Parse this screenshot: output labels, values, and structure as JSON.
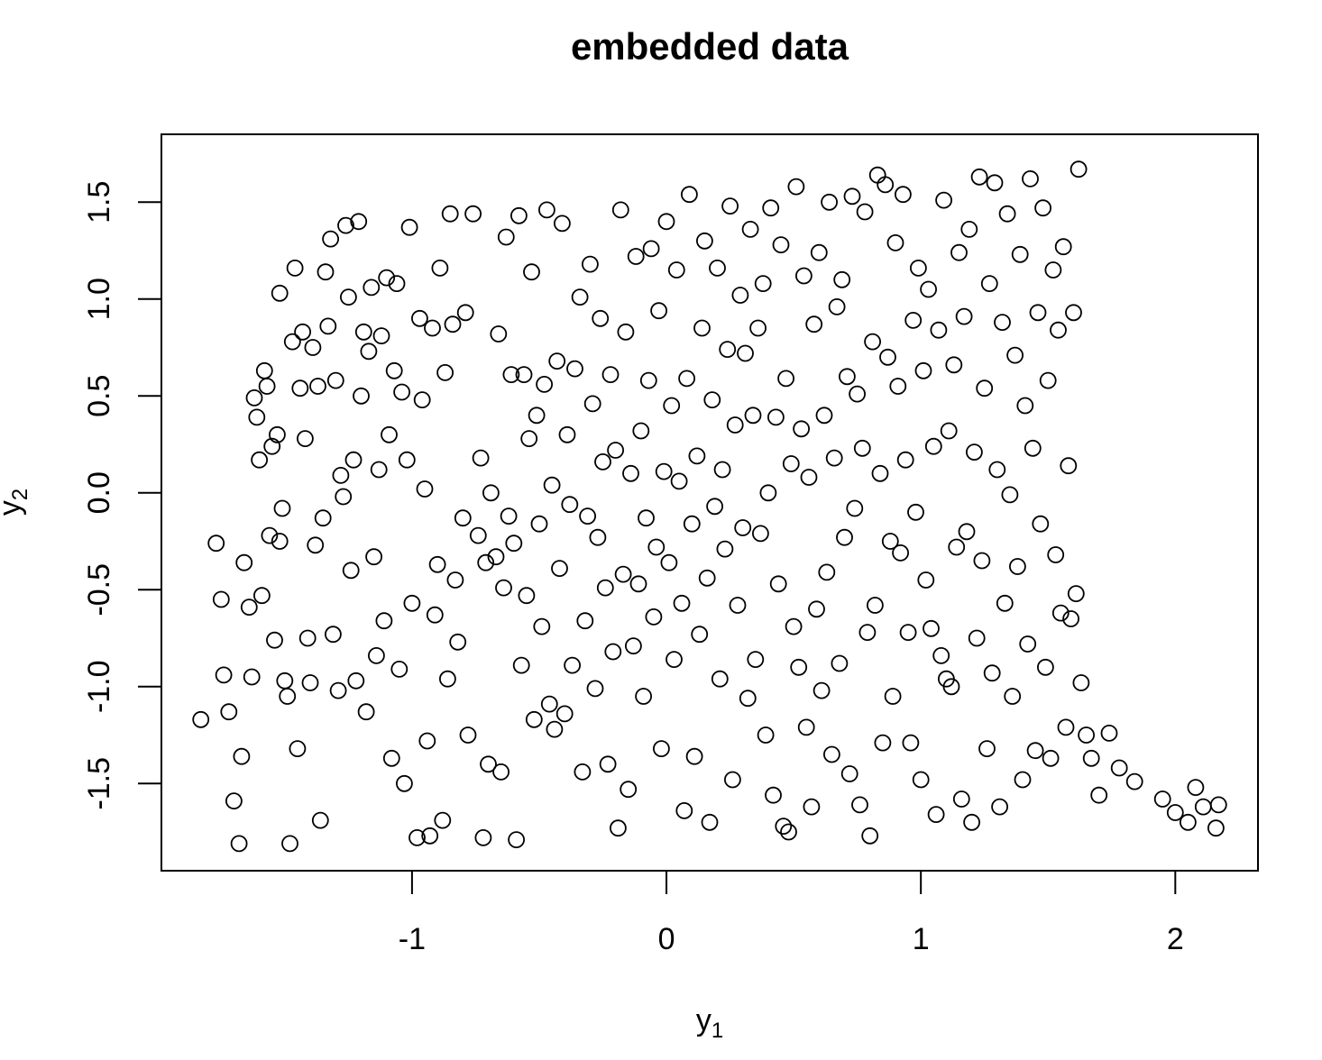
{
  "chart_data": {
    "type": "scatter",
    "title": "embedded  data",
    "xlabel": "y",
    "xlabel_subscript": "1",
    "ylabel": "y",
    "ylabel_subscript": "2",
    "xlim": [
      -1.985,
      2.325
    ],
    "ylim": [
      -1.95,
      1.85
    ],
    "x_ticks": [
      -1,
      0,
      1,
      2
    ],
    "x_tick_labels": [
      "-1",
      "0",
      "1",
      "2"
    ],
    "y_ticks": [
      -1.5,
      -1.0,
      -0.5,
      0.0,
      0.5,
      1.0,
      1.5
    ],
    "y_tick_labels": [
      "-1.5",
      "-1.0",
      "-0.5",
      "0.0",
      "0.5",
      "1.0",
      "1.5"
    ],
    "grid": false,
    "marker": "open-circle",
    "points": [
      [
        -1.83,
        -1.17
      ],
      [
        -1.77,
        -0.26
      ],
      [
        -1.75,
        -0.55
      ],
      [
        -1.74,
        -0.94
      ],
      [
        -1.72,
        -1.13
      ],
      [
        -1.7,
        -1.59
      ],
      [
        -1.68,
        -1.81
      ],
      [
        -1.67,
        -1.36
      ],
      [
        -1.66,
        -0.36
      ],
      [
        -1.64,
        -0.59
      ],
      [
        -1.63,
        -0.95
      ],
      [
        -1.62,
        0.49
      ],
      [
        -1.61,
        0.39
      ],
      [
        -1.6,
        0.17
      ],
      [
        -1.59,
        -0.53
      ],
      [
        -1.58,
        0.63
      ],
      [
        -1.57,
        0.55
      ],
      [
        -1.56,
        -0.22
      ],
      [
        -1.55,
        0.24
      ],
      [
        -1.54,
        -0.76
      ],
      [
        -1.53,
        0.3
      ],
      [
        -1.52,
        -0.25
      ],
      [
        -1.52,
        1.03
      ],
      [
        -1.51,
        -0.08
      ],
      [
        -1.5,
        -0.97
      ],
      [
        -1.49,
        -1.05
      ],
      [
        -1.48,
        -1.81
      ],
      [
        -1.47,
        0.78
      ],
      [
        -1.46,
        1.16
      ],
      [
        -1.45,
        -1.32
      ],
      [
        -1.44,
        0.54
      ],
      [
        -1.43,
        0.83
      ],
      [
        -1.42,
        0.28
      ],
      [
        -1.41,
        -0.75
      ],
      [
        -1.4,
        -0.98
      ],
      [
        -1.39,
        0.75
      ],
      [
        -1.38,
        -0.27
      ],
      [
        -1.37,
        0.55
      ],
      [
        -1.36,
        -1.69
      ],
      [
        -1.35,
        -0.13
      ],
      [
        -1.34,
        1.14
      ],
      [
        -1.33,
        0.86
      ],
      [
        -1.32,
        1.31
      ],
      [
        -1.31,
        -0.73
      ],
      [
        -1.3,
        0.58
      ],
      [
        -1.29,
        -1.02
      ],
      [
        -1.28,
        0.09
      ],
      [
        -1.27,
        -0.02
      ],
      [
        -1.26,
        1.38
      ],
      [
        -1.25,
        1.01
      ],
      [
        -1.24,
        -0.4
      ],
      [
        -1.23,
        0.17
      ],
      [
        -1.22,
        -0.97
      ],
      [
        -1.21,
        1.4
      ],
      [
        -1.2,
        0.5
      ],
      [
        -1.19,
        0.83
      ],
      [
        -1.18,
        -1.13
      ],
      [
        -1.17,
        0.73
      ],
      [
        -1.16,
        1.06
      ],
      [
        -1.15,
        -0.33
      ],
      [
        -1.14,
        -0.84
      ],
      [
        -1.13,
        0.12
      ],
      [
        -1.12,
        0.81
      ],
      [
        -1.11,
        -0.66
      ],
      [
        -1.1,
        1.11
      ],
      [
        -1.09,
        0.3
      ],
      [
        -1.08,
        -1.37
      ],
      [
        -1.07,
        0.63
      ],
      [
        -1.06,
        1.08
      ],
      [
        -1.05,
        -0.91
      ],
      [
        -1.04,
        0.52
      ],
      [
        -1.03,
        -1.5
      ],
      [
        -1.02,
        0.17
      ],
      [
        -1.01,
        1.37
      ],
      [
        -1.0,
        -0.57
      ],
      [
        -0.98,
        -1.78
      ],
      [
        -0.97,
        0.9
      ],
      [
        -0.96,
        0.48
      ],
      [
        -0.95,
        0.02
      ],
      [
        -0.94,
        -1.28
      ],
      [
        -0.93,
        -1.77
      ],
      [
        -0.92,
        0.85
      ],
      [
        -0.91,
        -0.63
      ],
      [
        -0.9,
        -0.37
      ],
      [
        -0.89,
        1.16
      ],
      [
        -0.88,
        -1.69
      ],
      [
        -0.87,
        0.62
      ],
      [
        -0.86,
        -0.96
      ],
      [
        -0.85,
        1.44
      ],
      [
        -0.84,
        0.87
      ],
      [
        -0.83,
        -0.45
      ],
      [
        -0.82,
        -0.77
      ],
      [
        -0.8,
        -0.13
      ],
      [
        -0.79,
        0.93
      ],
      [
        -0.78,
        -1.25
      ],
      [
        -0.76,
        1.44
      ],
      [
        -0.74,
        -0.22
      ],
      [
        -0.73,
        0.18
      ],
      [
        -0.72,
        -1.78
      ],
      [
        -0.71,
        -0.36
      ],
      [
        -0.7,
        -1.4
      ],
      [
        -0.69,
        0.0
      ],
      [
        -0.67,
        -0.33
      ],
      [
        -0.66,
        0.82
      ],
      [
        -0.65,
        -1.44
      ],
      [
        -0.64,
        -0.49
      ],
      [
        -0.63,
        1.32
      ],
      [
        -0.62,
        -0.12
      ],
      [
        -0.61,
        0.61
      ],
      [
        -0.6,
        -0.26
      ],
      [
        -0.59,
        -1.79
      ],
      [
        -0.58,
        1.43
      ],
      [
        -0.57,
        -0.89
      ],
      [
        -0.56,
        0.61
      ],
      [
        -0.55,
        -0.53
      ],
      [
        -0.54,
        0.28
      ],
      [
        -0.53,
        1.14
      ],
      [
        -0.52,
        -1.17
      ],
      [
        -0.51,
        0.4
      ],
      [
        -0.5,
        -0.16
      ],
      [
        -0.49,
        -0.69
      ],
      [
        -0.48,
        0.56
      ],
      [
        -0.47,
        1.46
      ],
      [
        -0.46,
        -1.09
      ],
      [
        -0.45,
        0.04
      ],
      [
        -0.44,
        -1.22
      ],
      [
        -0.43,
        0.68
      ],
      [
        -0.42,
        -0.39
      ],
      [
        -0.41,
        1.39
      ],
      [
        -0.4,
        -1.14
      ],
      [
        -0.39,
        0.3
      ],
      [
        -0.38,
        -0.06
      ],
      [
        -0.37,
        -0.89
      ],
      [
        -0.36,
        0.64
      ],
      [
        -0.34,
        1.01
      ],
      [
        -0.33,
        -1.44
      ],
      [
        -0.32,
        -0.66
      ],
      [
        -0.31,
        -0.12
      ],
      [
        -0.3,
        1.18
      ],
      [
        -0.29,
        0.46
      ],
      [
        -0.28,
        -1.01
      ],
      [
        -0.27,
        -0.23
      ],
      [
        -0.26,
        0.9
      ],
      [
        -0.25,
        0.16
      ],
      [
        -0.24,
        -0.49
      ],
      [
        -0.23,
        -1.4
      ],
      [
        -0.22,
        0.61
      ],
      [
        -0.21,
        -0.82
      ],
      [
        -0.2,
        0.22
      ],
      [
        -0.19,
        -1.73
      ],
      [
        -0.18,
        1.46
      ],
      [
        -0.17,
        -0.42
      ],
      [
        -0.16,
        0.83
      ],
      [
        -0.15,
        -1.53
      ],
      [
        -0.14,
        0.1
      ],
      [
        -0.13,
        -0.79
      ],
      [
        -0.12,
        1.22
      ],
      [
        -0.11,
        -0.47
      ],
      [
        -0.1,
        0.32
      ],
      [
        -0.09,
        -1.05
      ],
      [
        -0.08,
        -0.13
      ],
      [
        -0.07,
        0.58
      ],
      [
        -0.06,
        1.26
      ],
      [
        -0.05,
        -0.64
      ],
      [
        -0.04,
        -0.28
      ],
      [
        -0.03,
        0.94
      ],
      [
        -0.02,
        -1.32
      ],
      [
        -0.01,
        0.11
      ],
      [
        0.0,
        1.4
      ],
      [
        0.01,
        -0.36
      ],
      [
        0.02,
        0.45
      ],
      [
        0.03,
        -0.86
      ],
      [
        0.04,
        1.15
      ],
      [
        0.05,
        0.06
      ],
      [
        0.06,
        -0.57
      ],
      [
        0.07,
        -1.64
      ],
      [
        0.08,
        0.59
      ],
      [
        0.09,
        1.54
      ],
      [
        0.1,
        -0.16
      ],
      [
        0.11,
        -1.36
      ],
      [
        0.12,
        0.19
      ],
      [
        0.13,
        -0.73
      ],
      [
        0.14,
        0.85
      ],
      [
        0.15,
        1.3
      ],
      [
        0.16,
        -0.44
      ],
      [
        0.17,
        -1.7
      ],
      [
        0.18,
        0.48
      ],
      [
        0.19,
        -0.07
      ],
      [
        0.2,
        1.16
      ],
      [
        0.21,
        -0.96
      ],
      [
        0.22,
        0.12
      ],
      [
        0.23,
        -0.29
      ],
      [
        0.24,
        0.74
      ],
      [
        0.25,
        1.48
      ],
      [
        0.26,
        -1.48
      ],
      [
        0.27,
        0.35
      ],
      [
        0.28,
        -0.58
      ],
      [
        0.29,
        1.02
      ],
      [
        0.3,
        -0.18
      ],
      [
        0.31,
        0.72
      ],
      [
        0.32,
        -1.06
      ],
      [
        0.33,
        1.36
      ],
      [
        0.34,
        0.4
      ],
      [
        0.35,
        -0.86
      ],
      [
        0.36,
        0.85
      ],
      [
        0.37,
        -0.21
      ],
      [
        0.38,
        1.08
      ],
      [
        0.39,
        -1.25
      ],
      [
        0.4,
        0.0
      ],
      [
        0.41,
        1.47
      ],
      [
        0.42,
        -1.56
      ],
      [
        0.43,
        0.39
      ],
      [
        0.44,
        -0.47
      ],
      [
        0.45,
        1.28
      ],
      [
        0.46,
        -1.72
      ],
      [
        0.47,
        0.59
      ],
      [
        0.48,
        -1.75
      ],
      [
        0.49,
        0.15
      ],
      [
        0.5,
        -0.69
      ],
      [
        0.51,
        1.58
      ],
      [
        0.52,
        -0.9
      ],
      [
        0.53,
        0.33
      ],
      [
        0.54,
        1.12
      ],
      [
        0.55,
        -1.21
      ],
      [
        0.56,
        0.08
      ],
      [
        0.57,
        -1.62
      ],
      [
        0.58,
        0.87
      ],
      [
        0.59,
        -0.6
      ],
      [
        0.6,
        1.24
      ],
      [
        0.61,
        -1.02
      ],
      [
        0.62,
        0.4
      ],
      [
        0.63,
        -0.41
      ],
      [
        0.64,
        1.5
      ],
      [
        0.65,
        -1.35
      ],
      [
        0.66,
        0.18
      ],
      [
        0.67,
        0.96
      ],
      [
        0.68,
        -0.88
      ],
      [
        0.69,
        1.1
      ],
      [
        0.7,
        -0.23
      ],
      [
        0.71,
        0.6
      ],
      [
        0.72,
        -1.45
      ],
      [
        0.73,
        1.53
      ],
      [
        0.74,
        -0.08
      ],
      [
        0.75,
        0.51
      ],
      [
        0.76,
        -1.61
      ],
      [
        0.77,
        0.23
      ],
      [
        0.78,
        1.45
      ],
      [
        0.79,
        -0.72
      ],
      [
        0.8,
        -1.77
      ],
      [
        0.81,
        0.78
      ],
      [
        0.82,
        -0.58
      ],
      [
        0.83,
        1.64
      ],
      [
        0.84,
        0.1
      ],
      [
        0.85,
        -1.29
      ],
      [
        0.86,
        1.59
      ],
      [
        0.87,
        0.7
      ],
      [
        0.88,
        -0.25
      ],
      [
        0.89,
        -1.05
      ],
      [
        0.9,
        1.29
      ],
      [
        0.91,
        0.55
      ],
      [
        0.92,
        -0.31
      ],
      [
        0.93,
        1.54
      ],
      [
        0.94,
        0.17
      ],
      [
        0.95,
        -0.72
      ],
      [
        0.96,
        -1.29
      ],
      [
        0.97,
        0.89
      ],
      [
        0.98,
        -0.1
      ],
      [
        0.99,
        1.16
      ],
      [
        1.0,
        -1.48
      ],
      [
        1.01,
        0.63
      ],
      [
        1.02,
        -0.45
      ],
      [
        1.03,
        1.05
      ],
      [
        1.04,
        -0.7
      ],
      [
        1.05,
        0.24
      ],
      [
        1.06,
        -1.66
      ],
      [
        1.07,
        0.84
      ],
      [
        1.08,
        -0.84
      ],
      [
        1.09,
        1.51
      ],
      [
        1.1,
        -0.96
      ],
      [
        1.11,
        0.32
      ],
      [
        1.12,
        -1.0
      ],
      [
        1.13,
        0.66
      ],
      [
        1.14,
        -0.28
      ],
      [
        1.15,
        1.24
      ],
      [
        1.16,
        -1.58
      ],
      [
        1.17,
        0.91
      ],
      [
        1.18,
        -0.2
      ],
      [
        1.19,
        1.36
      ],
      [
        1.2,
        -1.7
      ],
      [
        1.21,
        0.21
      ],
      [
        1.22,
        -0.75
      ],
      [
        1.23,
        1.63
      ],
      [
        1.24,
        -0.35
      ],
      [
        1.25,
        0.54
      ],
      [
        1.26,
        -1.32
      ],
      [
        1.27,
        1.08
      ],
      [
        1.28,
        -0.93
      ],
      [
        1.29,
        1.6
      ],
      [
        1.3,
        0.12
      ],
      [
        1.31,
        -1.62
      ],
      [
        1.32,
        0.88
      ],
      [
        1.33,
        -0.57
      ],
      [
        1.34,
        1.44
      ],
      [
        1.35,
        -0.01
      ],
      [
        1.36,
        -1.05
      ],
      [
        1.37,
        0.71
      ],
      [
        1.38,
        -0.38
      ],
      [
        1.39,
        1.23
      ],
      [
        1.4,
        -1.48
      ],
      [
        1.41,
        0.45
      ],
      [
        1.42,
        -0.78
      ],
      [
        1.43,
        1.62
      ],
      [
        1.44,
        0.23
      ],
      [
        1.45,
        -1.33
      ],
      [
        1.46,
        0.93
      ],
      [
        1.47,
        -0.16
      ],
      [
        1.48,
        1.47
      ],
      [
        1.49,
        -0.9
      ],
      [
        1.5,
        0.58
      ],
      [
        1.51,
        -1.37
      ],
      [
        1.52,
        1.15
      ],
      [
        1.53,
        -0.32
      ],
      [
        1.54,
        0.84
      ],
      [
        1.55,
        -0.62
      ],
      [
        1.56,
        1.27
      ],
      [
        1.57,
        -1.21
      ],
      [
        1.58,
        0.14
      ],
      [
        1.59,
        -0.65
      ],
      [
        1.6,
        0.93
      ],
      [
        1.61,
        -0.52
      ],
      [
        1.62,
        1.67
      ],
      [
        1.63,
        -0.98
      ],
      [
        1.65,
        -1.25
      ],
      [
        1.67,
        -1.37
      ],
      [
        1.7,
        -1.56
      ],
      [
        1.74,
        -1.24
      ],
      [
        1.78,
        -1.42
      ],
      [
        1.84,
        -1.49
      ],
      [
        1.95,
        -1.58
      ],
      [
        2.0,
        -1.65
      ],
      [
        2.05,
        -1.7
      ],
      [
        2.08,
        -1.52
      ],
      [
        2.11,
        -1.62
      ],
      [
        2.16,
        -1.73
      ],
      [
        2.17,
        -1.61
      ]
    ]
  }
}
